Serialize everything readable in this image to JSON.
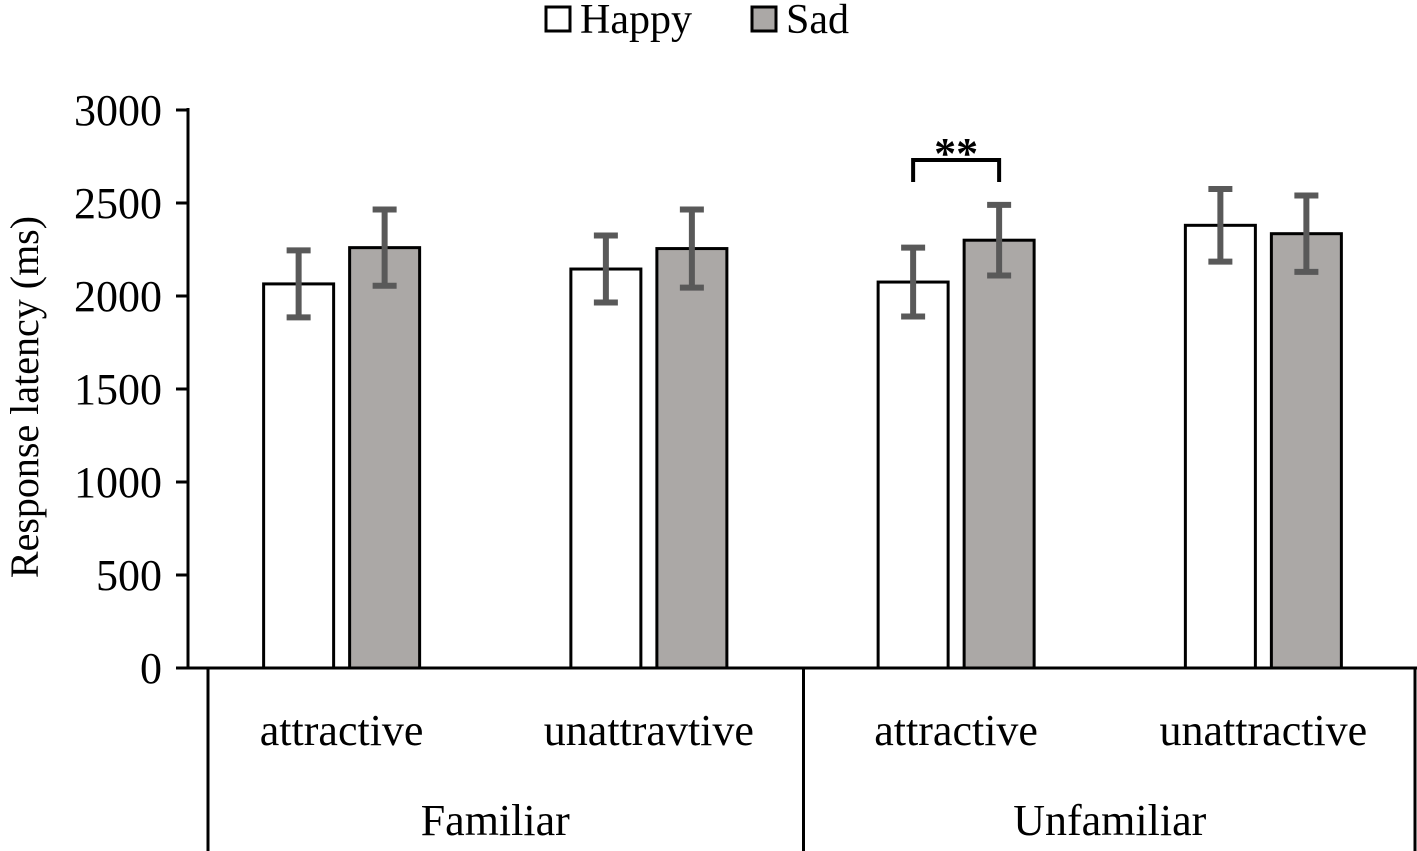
{
  "chart_data": {
    "type": "bar",
    "title": "",
    "xlabel": "",
    "ylabel": "Response latency (ms)",
    "ylim": [
      0,
      3000
    ],
    "yticks": [
      0,
      500,
      1000,
      1500,
      2000,
      2500,
      3000
    ],
    "groups": [
      {
        "label": "Familiar",
        "subcategories": [
          "attractive",
          "unattravtive"
        ]
      },
      {
        "label": "Unfamiliar",
        "subcategories": [
          "attractive",
          "unattractive"
        ]
      }
    ],
    "categories": [
      "attractive",
      "unattravtive",
      "attractive",
      "unattractive"
    ],
    "series": [
      {
        "name": "Happy",
        "color": "#ffffff",
        "values": [
          2065,
          2145,
          2075,
          2380
        ],
        "errors": [
          180,
          180,
          185,
          195
        ]
      },
      {
        "name": "Sad",
        "color": "#aba8a6",
        "values": [
          2260,
          2255,
          2300,
          2335
        ],
        "errors": [
          205,
          210,
          190,
          205
        ]
      }
    ],
    "annotations": [
      {
        "text": "**",
        "between": {
          "category_index": 2,
          "series": [
            "Happy",
            "Sad"
          ]
        }
      }
    ],
    "legend_position": "top-center",
    "grid": false
  },
  "colors": {
    "bar_outline": "#000000",
    "error_bar": "#595959",
    "axis": "#000000"
  }
}
